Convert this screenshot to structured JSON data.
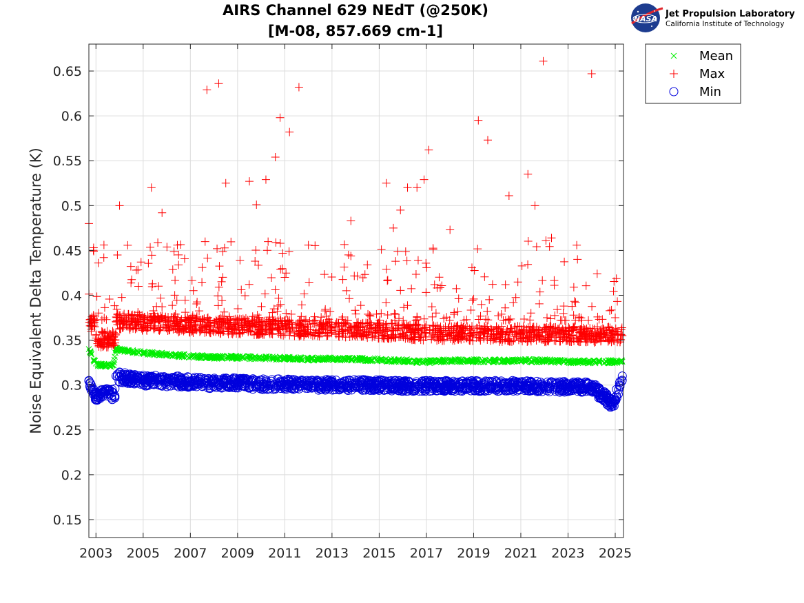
{
  "logo": {
    "org_name": "Jet Propulsion Laboratory",
    "org_sub": "California Institute of Technology",
    "badge_text": "NASA"
  },
  "colors": {
    "mean": "#00ee00",
    "max": "#ff0000",
    "min": "#0000dd",
    "grid": "#dcdcdc",
    "axis": "#262626"
  },
  "chart_data": {
    "type": "scatter",
    "title": "AIRS Channel 629 NEdT (@250K)",
    "subtitle": "[M-08, 857.669 cm-1]",
    "xlabel": "",
    "ylabel": "Noise Equivalent Delta Temperature (K)",
    "xlim": [
      2002.7,
      2025.35
    ],
    "ylim": [
      0.13,
      0.68
    ],
    "x_ticks": [
      2003,
      2005,
      2007,
      2009,
      2011,
      2013,
      2015,
      2017,
      2019,
      2021,
      2023,
      2025
    ],
    "y_ticks": [
      0.15,
      0.2,
      0.25,
      0.3,
      0.35,
      0.4,
      0.45,
      0.5,
      0.55,
      0.6,
      0.65
    ],
    "y_tick_labels": [
      "0.15",
      "0.2",
      "0.25",
      "0.3",
      "0.35",
      "0.4",
      "0.45",
      "0.5",
      "0.55",
      "0.6",
      "0.65"
    ],
    "grid": true,
    "legend_position": "outside-top-right",
    "legend": [
      {
        "name": "Mean",
        "marker": "x",
        "color": "#00ee00"
      },
      {
        "name": "Max",
        "marker": "+",
        "color": "#ff0000"
      },
      {
        "name": "Min",
        "marker": "o",
        "color": "#0000dd"
      }
    ],
    "series": [
      {
        "name": "Mean",
        "marker": "x",
        "color": "#00ee00",
        "x": [
          2002.7,
          2002.8,
          2002.9,
          2003.0,
          2003.2,
          2003.4,
          2003.6,
          2003.75,
          2003.85,
          2004.0,
          2004.3,
          2004.6,
          2005.0,
          2005.5,
          2006.0,
          2006.5,
          2007.0,
          2008.0,
          2009.0,
          2010.0,
          2011.0,
          2012.0,
          2013.0,
          2014.0,
          2015.0,
          2016.0,
          2017.0,
          2018.0,
          2019.0,
          2020.0,
          2021.0,
          2022.0,
          2023.0,
          2024.0,
          2025.0,
          2025.3
        ],
        "y": [
          0.34,
          0.334,
          0.328,
          0.324,
          0.322,
          0.322,
          0.322,
          0.322,
          0.34,
          0.339,
          0.338,
          0.337,
          0.336,
          0.335,
          0.334,
          0.333,
          0.332,
          0.331,
          0.331,
          0.33,
          0.33,
          0.329,
          0.329,
          0.329,
          0.328,
          0.327,
          0.326,
          0.327,
          0.327,
          0.327,
          0.327,
          0.327,
          0.326,
          0.326,
          0.326,
          0.326
        ]
      },
      {
        "name": "Max",
        "marker": "+",
        "color": "#ff0000",
        "x": [
          2002.7,
          2002.75,
          2002.8,
          2002.9,
          2003.0,
          2003.1,
          2003.2,
          2003.4,
          2003.6,
          2003.8,
          2003.85,
          2004.0,
          2004.2,
          2004.5,
          2004.8,
          2005.0,
          2005.35,
          2005.5,
          2005.8,
          2006.0,
          2006.5,
          2007.0,
          2007.5,
          2007.7,
          2008.0,
          2008.2,
          2008.5,
          2009.0,
          2009.5,
          2009.8,
          2010.0,
          2010.2,
          2010.6,
          2010.8,
          2011.2,
          2011.6,
          2012.0,
          2012.5,
          2013.0,
          2013.8,
          2014.5,
          2015.0,
          2015.3,
          2015.6,
          2015.9,
          2016.2,
          2016.6,
          2016.9,
          2017.1,
          2017.5,
          2018.0,
          2018.5,
          2018.9,
          2019.2,
          2019.6,
          2020.0,
          2020.5,
          2021.0,
          2021.3,
          2021.6,
          2021.95,
          2022.3,
          2022.6,
          2023.0,
          2023.4,
          2023.7,
          2024.0,
          2024.5,
          2025.0,
          2025.3
        ],
        "y": [
          0.48,
          0.37,
          0.36,
          0.453,
          0.355,
          0.436,
          0.35,
          0.352,
          0.351,
          0.35,
          0.371,
          0.5,
          0.372,
          0.371,
          0.41,
          0.37,
          0.52,
          0.371,
          0.492,
          0.37,
          0.445,
          0.37,
          0.431,
          0.629,
          0.37,
          0.636,
          0.525,
          0.368,
          0.527,
          0.501,
          0.368,
          0.529,
          0.554,
          0.598,
          0.582,
          0.632,
          0.456,
          0.367,
          0.365,
          0.483,
          0.434,
          0.364,
          0.525,
          0.475,
          0.495,
          0.52,
          0.52,
          0.529,
          0.562,
          0.363,
          0.473,
          0.36,
          0.358,
          0.595,
          0.573,
          0.357,
          0.511,
          0.357,
          0.535,
          0.5,
          0.661,
          0.464,
          0.357,
          0.356,
          0.44,
          0.357,
          0.647,
          0.356,
          0.356,
          0.355
        ]
      },
      {
        "name": "Min",
        "marker": "o",
        "color": "#0000dd",
        "x": [
          2002.7,
          2002.8,
          2002.9,
          2003.0,
          2003.2,
          2003.4,
          2003.6,
          2003.8,
          2003.85,
          2004.0,
          2004.5,
          2005.0,
          2005.5,
          2006.0,
          2006.5,
          2007.0,
          2008.0,
          2009.0,
          2010.0,
          2011.0,
          2012.0,
          2013.0,
          2014.0,
          2015.0,
          2016.0,
          2017.0,
          2018.0,
          2019.0,
          2020.0,
          2021.0,
          2022.0,
          2023.0,
          2024.0,
          2024.9,
          2025.2,
          2025.3
        ],
        "y": [
          0.305,
          0.3,
          0.292,
          0.288,
          0.29,
          0.291,
          0.29,
          0.288,
          0.31,
          0.309,
          0.307,
          0.305,
          0.305,
          0.304,
          0.304,
          0.303,
          0.302,
          0.302,
          0.301,
          0.301,
          0.3,
          0.3,
          0.3,
          0.3,
          0.299,
          0.299,
          0.299,
          0.299,
          0.299,
          0.299,
          0.298,
          0.298,
          0.298,
          0.279,
          0.3,
          0.31
        ]
      }
    ]
  }
}
